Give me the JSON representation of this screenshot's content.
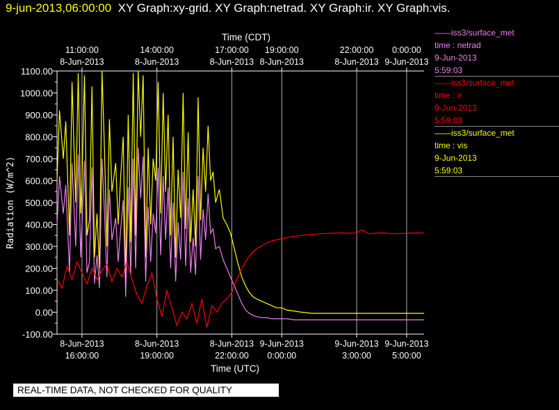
{
  "title": {
    "date": "9-jun-2013,06:00:00",
    "rest": "XY Graph:xy-grid.  XY Graph:netrad.  XY Graph:ir.  XY Graph:vis."
  },
  "legend": [
    {
      "line1": "iss3/surface_met",
      "line2": "time : netrad",
      "line3": "9-Jun-2013",
      "line4": "5:59:03",
      "color": "#ee82ee"
    },
    {
      "line1": "iss3/surface_met",
      "line2": "time : ir",
      "line3": "9-Jun-2013",
      "line4": "5:59:03",
      "color": "#ff0000"
    },
    {
      "line1": "iss3/surface_met",
      "line2": "time : vis",
      "line3": "9-Jun-2013",
      "line4": "5:59:03",
      "color": "#ffff00"
    }
  ],
  "banner": "REAL-TIME DATA, NOT CHECKED FOR QUALITY",
  "chart_data": {
    "type": "line",
    "xlabel_top": "Time (CDT)",
    "xlabel_bottom": "Time (UTC)",
    "ylabel": "Radiation (W/m^2)",
    "ylim": [
      -100,
      1100
    ],
    "xlim_utc_hours": [
      15,
      29.7
    ],
    "yticks": [
      "1100.00",
      "1000.00",
      "900.00",
      "800.00",
      "700.00",
      "600.00",
      "500.00",
      "400.00",
      "300.00",
      "200.00",
      "100.00",
      "0.00",
      "-100.00"
    ],
    "ytick_values": [
      1100,
      1000,
      900,
      800,
      700,
      600,
      500,
      400,
      300,
      200,
      100,
      0,
      -100
    ],
    "xticks_top": [
      {
        "t": 16,
        "l1": "11:00:00",
        "l2": "8-Jun-2013"
      },
      {
        "t": 19,
        "l1": "14:00:00",
        "l2": "8-Jun-2013"
      },
      {
        "t": 22,
        "l1": "17:00:00",
        "l2": "8-Jun-2013"
      },
      {
        "t": 24,
        "l1": "19:00:00",
        "l2": "8-Jun-2013"
      },
      {
        "t": 27,
        "l1": "22:00:00",
        "l2": "8-Jun-2013"
      },
      {
        "t": 29,
        "l1": "0:00:00",
        "l2": "9-Jun-2013"
      }
    ],
    "xticks_bottom": [
      {
        "t": 16,
        "l1": "8-Jun-2013",
        "l2": "16:00:00"
      },
      {
        "t": 19,
        "l1": "8-Jun-2013",
        "l2": "19:00:00"
      },
      {
        "t": 22,
        "l1": "8-Jun-2013",
        "l2": "22:00:00"
      },
      {
        "t": 24,
        "l1": "9-Jun-2013",
        "l2": "0:00:00"
      },
      {
        "t": 27,
        "l1": "9-Jun-2013",
        "l2": "3:00:00"
      },
      {
        "t": 29,
        "l1": "9-Jun-2013",
        "l2": "5:00:00"
      }
    ],
    "grid_x": [
      15,
      16,
      19,
      22,
      24,
      27,
      29
    ],
    "series": [
      {
        "name": "iss3/surface_met time : vis",
        "color": "#ffff00",
        "x": [
          15,
          15.1,
          15.25,
          15.35,
          15.5,
          15.6,
          15.75,
          15.85,
          15.95,
          16,
          16.1,
          16.2,
          16.3,
          16.4,
          16.5,
          16.6,
          16.7,
          16.8,
          16.9,
          17,
          17.1,
          17.2,
          17.35,
          17.45,
          17.55,
          17.65,
          17.75,
          17.85,
          17.95,
          18.05,
          18.15,
          18.25,
          18.35,
          18.45,
          18.55,
          18.65,
          18.75,
          18.85,
          18.95,
          19.05,
          19.15,
          19.25,
          19.35,
          19.45,
          19.55,
          19.65,
          19.75,
          19.85,
          19.95,
          20.05,
          20.15,
          20.25,
          20.35,
          20.45,
          20.55,
          20.65,
          20.75,
          20.85,
          20.95,
          21.05,
          21.15,
          21.25,
          21.35,
          21.5,
          21.65,
          21.8,
          21.95,
          22.1,
          22.25,
          22.4,
          22.55,
          22.7,
          22.85,
          23,
          23.2,
          23.4,
          23.6,
          23.8,
          24,
          24.2,
          24.5,
          24.8,
          25.2,
          25.6,
          26,
          26.5,
          27,
          27.5,
          28,
          28.5,
          29,
          29.5,
          29.7
        ],
        "y": [
          600,
          920,
          700,
          870,
          350,
          1050,
          500,
          1090,
          450,
          600,
          1080,
          350,
          420,
          1030,
          250,
          450,
          200,
          1100,
          750,
          300,
          880,
          550,
          680,
          400,
          620,
          800,
          150,
          900,
          320,
          1090,
          350,
          1100,
          800,
          1080,
          250,
          750,
          400,
          700,
          600,
          1050,
          450,
          1000,
          550,
          900,
          350,
          800,
          250,
          650,
          430,
          1000,
          380,
          820,
          320,
          560,
          300,
          980,
          420,
          750,
          550,
          850,
          600,
          640,
          500,
          560,
          430,
          400,
          360,
          290,
          220,
          160,
          120,
          90,
          70,
          60,
          50,
          40,
          30,
          20,
          20,
          10,
          5,
          0,
          -5,
          -5,
          -5,
          -5,
          -5,
          -5,
          -5,
          -5,
          -5,
          -5,
          -5
        ]
      },
      {
        "name": "iss3/surface_met time : netrad",
        "color": "#ee82ee",
        "x": [
          15,
          15.1,
          15.25,
          15.35,
          15.5,
          15.6,
          15.75,
          15.85,
          15.95,
          16,
          16.1,
          16.2,
          16.3,
          16.4,
          16.5,
          16.6,
          16.7,
          16.8,
          16.9,
          17,
          17.1,
          17.2,
          17.35,
          17.45,
          17.55,
          17.65,
          17.75,
          17.85,
          17.95,
          18.05,
          18.15,
          18.25,
          18.35,
          18.45,
          18.55,
          18.65,
          18.75,
          18.85,
          18.95,
          19.05,
          19.15,
          19.25,
          19.35,
          19.45,
          19.55,
          19.65,
          19.75,
          19.85,
          19.95,
          20.05,
          20.15,
          20.25,
          20.35,
          20.45,
          20.55,
          20.65,
          20.75,
          20.85,
          20.95,
          21.05,
          21.15,
          21.25,
          21.35,
          21.5,
          21.65,
          21.8,
          21.95,
          22.1,
          22.25,
          22.4,
          22.55,
          22.7,
          22.85,
          23,
          23.2,
          23.4,
          23.6,
          23.8,
          24,
          24.2,
          24.5,
          24.8,
          25.2,
          25.6,
          26,
          26.5,
          27,
          27.5,
          28,
          28.5,
          29,
          29.5,
          29.7
        ],
        "y": [
          400,
          620,
          450,
          580,
          180,
          680,
          300,
          720,
          250,
          400,
          690,
          180,
          230,
          660,
          130,
          260,
          110,
          700,
          460,
          160,
          560,
          330,
          430,
          230,
          380,
          510,
          70,
          570,
          170,
          700,
          200,
          750,
          520,
          710,
          140,
          480,
          230,
          450,
          360,
          660,
          260,
          620,
          330,
          570,
          200,
          500,
          140,
          410,
          240,
          640,
          210,
          520,
          180,
          340,
          170,
          620,
          240,
          470,
          330,
          540,
          360,
          380,
          290,
          300,
          240,
          200,
          160,
          120,
          80,
          40,
          10,
          -5,
          -15,
          -20,
          -25,
          -25,
          -30,
          -30,
          -30,
          -30,
          -35,
          -35,
          -35,
          -35,
          -35,
          -35,
          -35,
          -35,
          -35,
          -35,
          -35,
          -35,
          -35
        ]
      },
      {
        "name": "iss3/surface_met time : ir",
        "color": "#ff0000",
        "x": [
          15,
          15.2,
          15.4,
          15.6,
          15.8,
          16,
          16.2,
          16.4,
          16.6,
          16.8,
          17,
          17.2,
          17.4,
          17.6,
          17.8,
          18,
          18.2,
          18.4,
          18.6,
          18.8,
          19,
          19.2,
          19.4,
          19.6,
          19.8,
          20,
          20.2,
          20.4,
          20.6,
          20.8,
          21,
          21.2,
          21.4,
          21.6,
          21.8,
          22,
          22.2,
          22.4,
          22.6,
          22.8,
          23,
          23.3,
          23.6,
          24,
          24.4,
          24.8,
          25.2,
          25.6,
          26,
          26.4,
          26.8,
          27,
          27.2,
          27.5,
          28,
          28.5,
          29,
          29.5,
          29.7
        ],
        "y": [
          150,
          110,
          210,
          150,
          230,
          180,
          130,
          200,
          150,
          190,
          220,
          140,
          200,
          160,
          230,
          150,
          80,
          40,
          120,
          180,
          60,
          -20,
          100,
          20,
          -60,
          0,
          -30,
          40,
          -50,
          60,
          -70,
          30,
          0,
          40,
          60,
          90,
          150,
          200,
          240,
          270,
          290,
          310,
          325,
          335,
          345,
          350,
          355,
          358,
          360,
          362,
          360,
          362,
          375,
          358,
          362,
          358,
          360,
          362,
          360
        ]
      }
    ]
  }
}
